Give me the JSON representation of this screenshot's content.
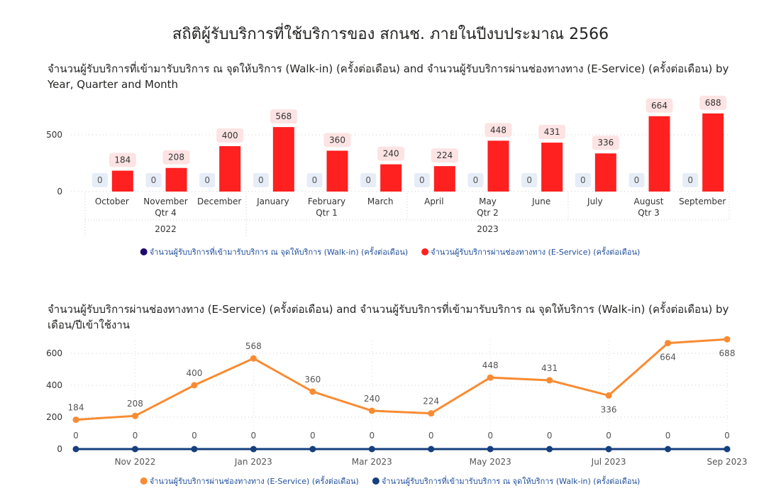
{
  "page_title": "สถิติผู้รับบริการที่ใช้บริการของ สกนช. ภายในปีงบประมาณ 2566",
  "colors": {
    "walkin_bar": "#E6EDF7",
    "eservice_bar": "#FF2020",
    "line_eservice": "#F98B32",
    "line_walkin": "#153F7D",
    "legend_walkin_bar": "#1E0A6E"
  },
  "chart_data": [
    {
      "type": "bar",
      "title": "จำนวนผู้รับบริการที่เข้ามารับบริการ ณ จุดให้บริการ (Walk-in) (ครั้งต่อเดือน) and จำนวนผู้รับบริการผ่านช่องทางทาง (E-Service) (ครั้งต่อเดือน) by Year, Quarter and Month",
      "categories": [
        "October",
        "November",
        "December",
        "January",
        "February",
        "March",
        "April",
        "May",
        "June",
        "July",
        "August",
        "September"
      ],
      "quarters": [
        {
          "label": "Qtr 4",
          "span": 3
        },
        {
          "label": "Qtr 1",
          "span": 3
        },
        {
          "label": "Qtr 2",
          "span": 3
        },
        {
          "label": "Qtr 3",
          "span": 3
        }
      ],
      "years": [
        {
          "label": "2022",
          "span": 3
        },
        {
          "label": "2023",
          "span": 9
        }
      ],
      "series": [
        {
          "name": "จำนวนผู้รับบริการที่เข้ามารับบริการ ณ จุดให้บริการ (Walk-in) (ครั้งต่อเดือน)",
          "values": [
            0,
            0,
            0,
            0,
            0,
            0,
            0,
            0,
            0,
            0,
            0,
            0
          ]
        },
        {
          "name": "จำนวนผู้รับบริการผ่านช่องทางทาง (E-Service) (ครั้งต่อเดือน)",
          "values": [
            184,
            208,
            400,
            568,
            360,
            240,
            224,
            448,
            431,
            336,
            664,
            688
          ]
        }
      ],
      "yticks": [
        "0",
        "500"
      ],
      "ylim": [
        0,
        750
      ],
      "grid": true,
      "legend": "bottom-center"
    },
    {
      "type": "line",
      "title": "จำนวนผู้รับบริการผ่านช่องทางทาง (E-Service) (ครั้งต่อเดือน) and จำนวนผู้รับบริการที่เข้ามารับบริการ ณ จุดให้บริการ (Walk-in) (ครั้งต่อเดือน) by เดือน/ปีเข้าใช้งาน",
      "x": [
        "Oct 2022",
        "Nov 2022",
        "Dec 2022",
        "Jan 2023",
        "Feb 2023",
        "Mar 2023",
        "Apr 2023",
        "May 2023",
        "Jun 2023",
        "Jul 2023",
        "Aug 2023",
        "Sep 2023"
      ],
      "xtick_labels": [
        "Nov 2022",
        "Jan 2023",
        "Mar 2023",
        "May 2023",
        "Jul 2023",
        "Sep 2023"
      ],
      "series": [
        {
          "name": "จำนวนผู้รับบริการผ่านช่องทางทาง (E-Service) (ครั้งต่อเดือน)",
          "values": [
            184,
            208,
            400,
            568,
            360,
            240,
            224,
            448,
            431,
            336,
            664,
            688
          ]
        },
        {
          "name": "จำนวนผู้รับบริการที่เข้ามารับบริการ ณ จุดให้บริการ (Walk-in) (ครั้งต่อเดือน)",
          "values": [
            0,
            0,
            0,
            0,
            0,
            0,
            0,
            0,
            0,
            0,
            0,
            0
          ]
        }
      ],
      "yticks": [
        "0",
        "200",
        "400",
        "600"
      ],
      "ylim": [
        0,
        700
      ],
      "grid": true,
      "legend": "bottom-center"
    }
  ]
}
